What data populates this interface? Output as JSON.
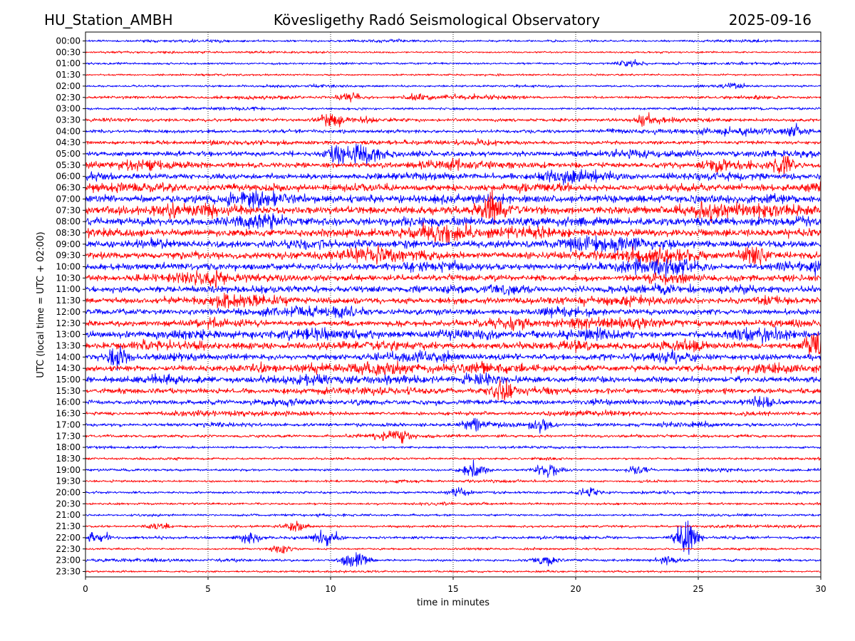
{
  "header": {
    "station": "HU_Station_AMBH",
    "observatory": "Kövesligethy Radó Seismological Observatory",
    "date": "2025-09-16"
  },
  "chart_data": {
    "type": "line",
    "title": "Kövesligethy Radó Seismological Observatory",
    "xlabel": "time in minutes",
    "ylabel": "UTC (local time = UTC + 02:00)",
    "xlim": [
      0,
      30
    ],
    "x_ticks": [
      "0",
      "5",
      "10",
      "15",
      "20",
      "25",
      "30"
    ],
    "x_tick_values": [
      0,
      5,
      10,
      15,
      20,
      25,
      30
    ],
    "grid": "vertical dotted lines at each x tick",
    "row_labels": [
      "00:00",
      "00:30",
      "01:00",
      "01:30",
      "02:00",
      "02:30",
      "03:00",
      "03:30",
      "04:00",
      "04:30",
      "05:00",
      "05:30",
      "06:00",
      "06:30",
      "07:00",
      "07:30",
      "08:00",
      "08:30",
      "09:00",
      "09:30",
      "10:00",
      "10:30",
      "11:00",
      "11:30",
      "12:00",
      "12:30",
      "13:00",
      "13:30",
      "14:00",
      "14:30",
      "15:00",
      "15:30",
      "16:00",
      "16:30",
      "17:00",
      "17:30",
      "18:00",
      "18:30",
      "19:00",
      "19:30",
      "20:00",
      "20:30",
      "21:00",
      "21:30",
      "22:00",
      "22:30",
      "23:00",
      "23:30"
    ],
    "colors": [
      "#0000ff",
      "#ff0000"
    ],
    "amplitude_profile": [
      0.08,
      0.05,
      0.07,
      0.05,
      0.08,
      0.12,
      0.1,
      0.18,
      0.2,
      0.22,
      0.35,
      0.38,
      0.4,
      0.45,
      0.55,
      0.6,
      0.6,
      0.55,
      0.5,
      0.52,
      0.48,
      0.45,
      0.45,
      0.45,
      0.42,
      0.42,
      0.45,
      0.5,
      0.42,
      0.42,
      0.4,
      0.35,
      0.3,
      0.2,
      0.18,
      0.15,
      0.08,
      0.08,
      0.1,
      0.08,
      0.1,
      0.08,
      0.08,
      0.1,
      0.12,
      0.06,
      0.12,
      0.05
    ],
    "events": [
      {
        "row": 2,
        "minute": 22.2,
        "amplitude": 0.3
      },
      {
        "row": 4,
        "minute": 26.5,
        "amplitude": 0.35
      },
      {
        "row": 5,
        "minute": 10.8,
        "amplitude": 0.5
      },
      {
        "row": 5,
        "minute": 13.5,
        "amplitude": 0.4
      },
      {
        "row": 7,
        "minute": 10.0,
        "amplitude": 0.9
      },
      {
        "row": 7,
        "minute": 22.9,
        "amplitude": 0.6
      },
      {
        "row": 8,
        "minute": 29.0,
        "amplitude": 0.5
      },
      {
        "row": 10,
        "minute": 10.2,
        "amplitude": 0.8
      },
      {
        "row": 10,
        "minute": 11.4,
        "amplitude": 0.9
      },
      {
        "row": 11,
        "minute": 28.4,
        "amplitude": 0.9
      },
      {
        "row": 15,
        "minute": 16.6,
        "amplitude": 1.2
      },
      {
        "row": 19,
        "minute": 27.3,
        "amplitude": 1.0
      },
      {
        "row": 27,
        "minute": 29.7,
        "amplitude": 1.0
      },
      {
        "row": 28,
        "minute": 1.2,
        "amplitude": 1.0
      },
      {
        "row": 31,
        "minute": 17.0,
        "amplitude": 0.9
      },
      {
        "row": 32,
        "minute": 27.6,
        "amplitude": 0.7
      },
      {
        "row": 34,
        "minute": 15.8,
        "amplitude": 0.6
      },
      {
        "row": 34,
        "minute": 18.5,
        "amplitude": 0.5
      },
      {
        "row": 35,
        "minute": 12.8,
        "amplitude": 0.5
      },
      {
        "row": 38,
        "minute": 15.9,
        "amplitude": 0.9
      },
      {
        "row": 38,
        "minute": 18.9,
        "amplitude": 0.7
      },
      {
        "row": 38,
        "minute": 22.5,
        "amplitude": 0.5
      },
      {
        "row": 40,
        "minute": 15.2,
        "amplitude": 0.4
      },
      {
        "row": 40,
        "minute": 20.5,
        "amplitude": 0.4
      },
      {
        "row": 43,
        "minute": 3.0,
        "amplitude": 0.4
      },
      {
        "row": 43,
        "minute": 8.5,
        "amplitude": 0.5
      },
      {
        "row": 44,
        "minute": 0.5,
        "amplitude": 0.6
      },
      {
        "row": 44,
        "minute": 6.7,
        "amplitude": 0.7
      },
      {
        "row": 44,
        "minute": 9.8,
        "amplitude": 1.0
      },
      {
        "row": 44,
        "minute": 24.5,
        "amplitude": 1.8
      },
      {
        "row": 45,
        "minute": 8.0,
        "amplitude": 0.4
      },
      {
        "row": 46,
        "minute": 11.0,
        "amplitude": 1.2
      },
      {
        "row": 46,
        "minute": 18.8,
        "amplitude": 0.5
      },
      {
        "row": 46,
        "minute": 23.8,
        "amplitude": 0.4
      }
    ]
  }
}
